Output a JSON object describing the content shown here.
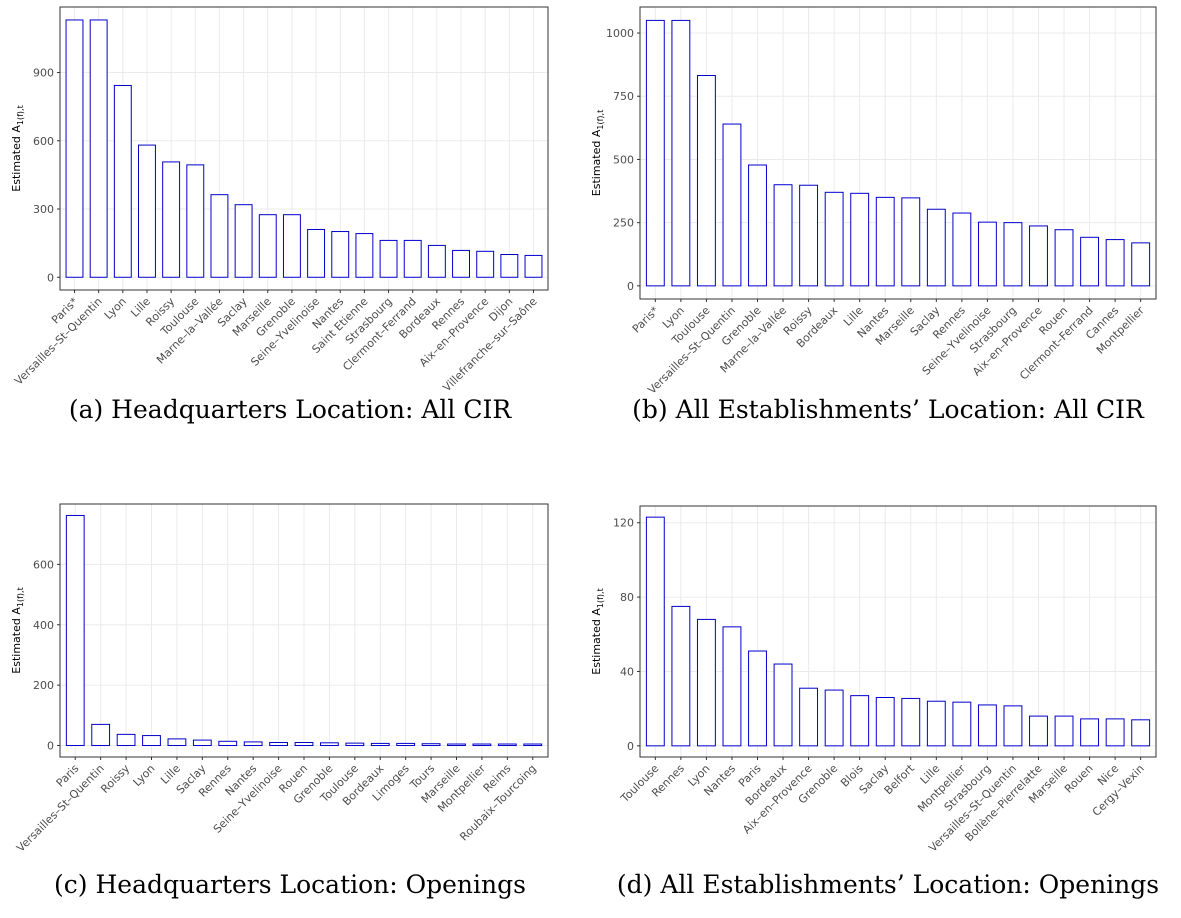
{
  "chart_data": [
    {
      "type": "bar",
      "caption": "(a) Headquarters Location: All CIR",
      "ylabel": "Estimated A",
      "ylabel_sub": "1(f),t",
      "categories": [
        "Paris*",
        "Versailles–St–Quentin",
        "Lyon",
        "Lille",
        "Roissy",
        "Toulouse",
        "Marne–la–Vallée",
        "Saclay",
        "Marseille",
        "Grenoble",
        "Seine–Yvelinoise",
        "Nantes",
        "Saint Etienne",
        "Strasbourg",
        "Clermont–Ferrand",
        "Bordeaux",
        "Rennes",
        "Aix–en–Provence",
        "Dijon",
        "Villefranche–sur–Saône"
      ],
      "values": [
        1131,
        1131,
        843,
        581,
        507,
        494,
        363,
        319,
        275,
        275,
        210,
        201,
        192,
        162,
        162,
        140,
        118,
        114,
        100,
        96
      ],
      "color": "#0000cc",
      "ylim": [
        -56,
        1188
      ],
      "yticks": [
        0,
        300,
        600,
        900
      ],
      "grid": true
    },
    {
      "type": "bar",
      "caption": "(b) All Establishments’ Location: All CIR",
      "ylabel": "Estimated A",
      "ylabel_sub": "1(f),t",
      "categories": [
        "Paris*",
        "Lyon",
        "Toulouse",
        "Versailles–St–Quentin",
        "Grenoble",
        "Marne–la–Vallée",
        "Roissy",
        "Bordeaux",
        "Lille",
        "Nantes",
        "Marseille",
        "Saclay",
        "Rennes",
        "Seine–Yvelinoise",
        "Strasbourg",
        "Aix–en–Provence",
        "Rouen",
        "Clermont–Ferrand",
        "Cannes",
        "Montpellier"
      ],
      "values": [
        1050,
        1050,
        832,
        640,
        478,
        400,
        398,
        370,
        366,
        350,
        348,
        303,
        288,
        252,
        250,
        237,
        222,
        192,
        183,
        170
      ],
      "color": "#0000cc",
      "ylim": [
        -52,
        1103
      ],
      "yticks": [
        0,
        250,
        500,
        750,
        1000
      ],
      "grid": true
    },
    {
      "type": "bar",
      "caption": "(c) Headquarters Location: Openings",
      "ylabel": "Estimated A",
      "ylabel_sub": "1(f),t",
      "categories": [
        "Paris",
        "Versailles–St–Quentin",
        "Roissy",
        "Lyon",
        "Lille",
        "Saclay",
        "Rennes",
        "Nantes",
        "Seine–Yvelinoise",
        "Rouen",
        "Grenoble",
        "Toulouse",
        "Bordeaux",
        "Limoges",
        "Tours",
        "Marseille",
        "Montpellier",
        "Reims",
        "Roubaix–Tourcoing"
      ],
      "values": [
        762,
        70,
        37,
        33,
        22,
        18,
        14,
        12,
        10,
        10,
        9,
        8,
        7,
        7,
        6,
        5,
        5,
        5,
        5
      ],
      "color": "#0000cc",
      "ylim": [
        -38,
        800
      ],
      "yticks": [
        0,
        200,
        400,
        600
      ],
      "grid": true
    },
    {
      "type": "bar",
      "caption": "(d) All Establishments’ Location: Openings",
      "ylabel": "Estimated A",
      "ylabel_sub": "1(f),t",
      "categories": [
        "Toulouse",
        "Rennes",
        "Lyon",
        "Nantes",
        "Paris",
        "Bordeaux",
        "Aix–en–Provence",
        "Grenoble",
        "Blois",
        "Saclay",
        "Belfort",
        "Lille",
        "Montpellier",
        "Strasbourg",
        "Versailles–St–Quentin",
        "Bollène–Pierrelatte",
        "Marseille",
        "Rouen",
        "Nice",
        "Cergy–Vexin"
      ],
      "values": [
        123,
        75,
        68,
        64,
        51,
        44,
        31,
        30,
        27,
        26,
        25.5,
        24,
        23.5,
        22,
        21.5,
        16,
        16,
        14.5,
        14.5,
        14
      ],
      "color": "#0000cc",
      "ylim": [
        -6,
        129
      ],
      "yticks": [
        0,
        40,
        80,
        120
      ],
      "grid": true
    }
  ]
}
